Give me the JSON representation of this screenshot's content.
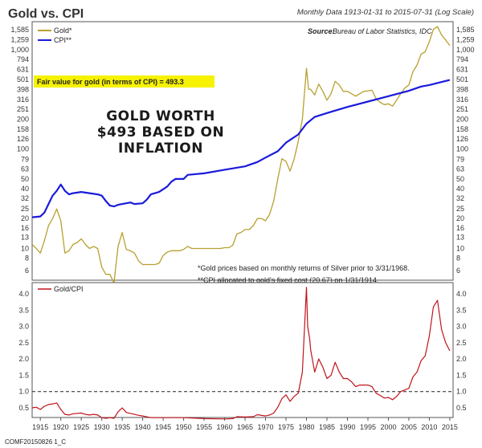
{
  "header": {
    "title": "Gold vs. CPI",
    "subtitle": "Monthly Data 1913-01-31 to 2015-07-31 (Log Scale)"
  },
  "source_label": "Source:",
  "source_text": "Bureau of Labor Statistics, IDC",
  "fair_value_text": "Fair value for gold (in terms of CPI) = 493.3",
  "headline_lines": [
    "GOLD WORTH",
    "$493 BASED ON",
    "INFLATION"
  ],
  "notes": [
    "*Gold prices based on monthly returns of Silver prior to 3/31/1968.",
    "**CPI allocated to gold's fixed cost (20.67) on 1/31/1914."
  ],
  "footer_code": "COMF20150826 1_C",
  "colors": {
    "gold": "#b8a030",
    "cpi": "#1a1adc",
    "ratio": "#c0141c",
    "fair_bg": "#f6f200"
  },
  "chart_data": [
    {
      "type": "line",
      "scale": "log",
      "series": [
        {
          "name": "Gold*",
          "points": [
            [
              1913,
              11
            ],
            [
              1914,
              10
            ],
            [
              1915,
              9
            ],
            [
              1916,
              12
            ],
            [
              1917,
              17
            ],
            [
              1918,
              20
            ],
            [
              1919,
              25
            ],
            [
              1920,
              19
            ],
            [
              1921,
              9
            ],
            [
              1922,
              9.5
            ],
            [
              1923,
              11
            ],
            [
              1924,
              11.5
            ],
            [
              1925,
              12.5
            ],
            [
              1926,
              11
            ],
            [
              1927,
              10
            ],
            [
              1928,
              10.5
            ],
            [
              1929,
              10
            ],
            [
              1930,
              6.5
            ],
            [
              1931,
              5.5
            ],
            [
              1932,
              5.5
            ],
            [
              1933,
              4.5
            ],
            [
              1933.5,
              7
            ],
            [
              1934,
              10.5
            ],
            [
              1935,
              14.5
            ],
            [
              1936,
              9.8
            ],
            [
              1937,
              9.5
            ],
            [
              1938,
              9
            ],
            [
              1939,
              7.5
            ],
            [
              1940,
              6.9
            ],
            [
              1941,
              6.9
            ],
            [
              1942,
              6.9
            ],
            [
              1943,
              6.9
            ],
            [
              1944,
              7.1
            ],
            [
              1945,
              8.5
            ],
            [
              1946,
              9.2
            ],
            [
              1947,
              9.5
            ],
            [
              1948,
              9.5
            ],
            [
              1949,
              9.5
            ],
            [
              1950,
              9.8
            ],
            [
              1951,
              10.5
            ],
            [
              1952,
              10
            ],
            [
              1953,
              10
            ],
            [
              1954,
              10
            ],
            [
              1955,
              10
            ],
            [
              1956,
              10
            ],
            [
              1957,
              10
            ],
            [
              1958,
              10
            ],
            [
              1959,
              10
            ],
            [
              1960,
              10.2
            ],
            [
              1961,
              10.2
            ],
            [
              1962,
              10.8
            ],
            [
              1963,
              14
            ],
            [
              1964,
              14.5
            ],
            [
              1965,
              15.5
            ],
            [
              1966,
              15.5
            ],
            [
              1967,
              17
            ],
            [
              1968,
              20
            ],
            [
              1969,
              20
            ],
            [
              1970,
              19
            ],
            [
              1971,
              22
            ],
            [
              1972,
              30
            ],
            [
              1973,
              50
            ],
            [
              1974,
              80
            ],
            [
              1975,
              75
            ],
            [
              1976,
              60
            ],
            [
              1977,
              80
            ],
            [
              1978,
              120
            ],
            [
              1979,
              200
            ],
            [
              1980,
              650
            ],
            [
              1980.5,
              400
            ],
            [
              1981,
              400
            ],
            [
              1982,
              350
            ],
            [
              1983,
              450
            ],
            [
              1984,
              380
            ],
            [
              1985,
              310
            ],
            [
              1986,
              360
            ],
            [
              1987,
              480
            ],
            [
              1988,
              440
            ],
            [
              1989,
              380
            ],
            [
              1990,
              380
            ],
            [
              1991,
              360
            ],
            [
              1992,
              340
            ],
            [
              1993,
              360
            ],
            [
              1994,
              380
            ],
            [
              1995,
              385
            ],
            [
              1996,
              390
            ],
            [
              1997,
              320
            ],
            [
              1998,
              295
            ],
            [
              1999,
              280
            ],
            [
              2000,
              285
            ],
            [
              2001,
              270
            ],
            [
              2002,
              310
            ],
            [
              2003,
              360
            ],
            [
              2004,
              410
            ],
            [
              2005,
              440
            ],
            [
              2006,
              600
            ],
            [
              2007,
              700
            ],
            [
              2008,
              900
            ],
            [
              2009,
              950
            ],
            [
              2010,
              1200
            ],
            [
              2011,
              1600
            ],
            [
              2012,
              1700
            ],
            [
              2013,
              1400
            ],
            [
              2014,
              1250
            ],
            [
              2015,
              1100
            ]
          ]
        },
        {
          "name": "CPI**",
          "points": [
            [
              1913,
              20.6
            ],
            [
              1915,
              21
            ],
            [
              1916,
              23
            ],
            [
              1917,
              28
            ],
            [
              1918,
              34
            ],
            [
              1919,
              38
            ],
            [
              1920,
              44
            ],
            [
              1921,
              38
            ],
            [
              1922,
              35
            ],
            [
              1923,
              36
            ],
            [
              1925,
              37
            ],
            [
              1929,
              35
            ],
            [
              1930,
              34
            ],
            [
              1931,
              30
            ],
            [
              1932,
              27
            ],
            [
              1933,
              26.5
            ],
            [
              1934,
              27.5
            ],
            [
              1937,
              29
            ],
            [
              1938,
              28
            ],
            [
              1940,
              28.5
            ],
            [
              1941,
              31
            ],
            [
              1942,
              35
            ],
            [
              1944,
              37
            ],
            [
              1946,
              42
            ],
            [
              1947,
              47
            ],
            [
              1948,
              50
            ],
            [
              1950,
              50
            ],
            [
              1951,
              55
            ],
            [
              1955,
              57
            ],
            [
              1960,
              62
            ],
            [
              1965,
              67
            ],
            [
              1968,
              74
            ],
            [
              1970,
              82
            ],
            [
              1973,
              95
            ],
            [
              1975,
              116
            ],
            [
              1978,
              140
            ],
            [
              1980,
              180
            ],
            [
              1982,
              210
            ],
            [
              1985,
              230
            ],
            [
              1990,
              265
            ],
            [
              1995,
              300
            ],
            [
              2000,
              340
            ],
            [
              2005,
              385
            ],
            [
              2008,
              425
            ],
            [
              2010,
              440
            ],
            [
              2015,
              495
            ]
          ]
        }
      ],
      "x_ticks": [
        1915,
        1920,
        1925,
        1930,
        1935,
        1940,
        1945,
        1950,
        1955,
        1960,
        1965,
        1970,
        1975,
        1980,
        1985,
        1990,
        1995,
        2000,
        2005,
        2010,
        2015
      ],
      "y_ticks": [
        "6",
        "8",
        "10",
        "13",
        "16",
        "20",
        "25",
        "32",
        "40",
        "50",
        "63",
        "79",
        "100",
        "126",
        "158",
        "200",
        "251",
        "316",
        "398",
        "501",
        "631",
        "794",
        "1,000",
        "1,259",
        "1,585"
      ],
      "legend_position": "top-left"
    },
    {
      "type": "line",
      "series": [
        {
          "name": "Gold/CPI",
          "points": [
            [
              1913,
              0.5
            ],
            [
              1914,
              0.52
            ],
            [
              1915,
              0.45
            ],
            [
              1916,
              0.55
            ],
            [
              1917,
              0.6
            ],
            [
              1918,
              0.62
            ],
            [
              1919,
              0.65
            ],
            [
              1920,
              0.45
            ],
            [
              1921,
              0.3
            ],
            [
              1922,
              0.28
            ],
            [
              1923,
              0.32
            ],
            [
              1925,
              0.34
            ],
            [
              1926,
              0.3
            ],
            [
              1927,
              0.28
            ],
            [
              1928,
              0.3
            ],
            [
              1929,
              0.28
            ],
            [
              1930,
              0.2
            ],
            [
              1931,
              0.18
            ],
            [
              1932,
              0.2
            ],
            [
              1933,
              0.18
            ],
            [
              1934,
              0.38
            ],
            [
              1935,
              0.5
            ],
            [
              1936,
              0.36
            ],
            [
              1937,
              0.33
            ],
            [
              1938,
              0.3
            ],
            [
              1939,
              0.27
            ],
            [
              1940,
              0.25
            ],
            [
              1942,
              0.2
            ],
            [
              1945,
              0.2
            ],
            [
              1950,
              0.2
            ],
            [
              1955,
              0.17
            ],
            [
              1960,
              0.16
            ],
            [
              1962,
              0.17
            ],
            [
              1963,
              0.23
            ],
            [
              1965,
              0.22
            ],
            [
              1967,
              0.23
            ],
            [
              1968,
              0.29
            ],
            [
              1970,
              0.25
            ],
            [
              1971,
              0.28
            ],
            [
              1972,
              0.34
            ],
            [
              1973,
              0.52
            ],
            [
              1974,
              0.78
            ],
            [
              1975,
              0.9
            ],
            [
              1976,
              0.7
            ],
            [
              1977,
              0.85
            ],
            [
              1978,
              0.95
            ],
            [
              1979,
              1.6
            ],
            [
              1980,
              4.2
            ],
            [
              1980.3,
              3.0
            ],
            [
              1980.8,
              2.6
            ],
            [
              1981,
              2.3
            ],
            [
              1982,
              1.6
            ],
            [
              1983,
              2.0
            ],
            [
              1984,
              1.75
            ],
            [
              1985,
              1.4
            ],
            [
              1986,
              1.5
            ],
            [
              1987,
              1.9
            ],
            [
              1988,
              1.6
            ],
            [
              1989,
              1.4
            ],
            [
              1990,
              1.4
            ],
            [
              1991,
              1.3
            ],
            [
              1992,
              1.15
            ],
            [
              1993,
              1.2
            ],
            [
              1994,
              1.2
            ],
            [
              1995,
              1.2
            ],
            [
              1996,
              1.15
            ],
            [
              1997,
              0.95
            ],
            [
              1998,
              0.88
            ],
            [
              1999,
              0.8
            ],
            [
              2000,
              0.82
            ],
            [
              2001,
              0.75
            ],
            [
              2002,
              0.85
            ],
            [
              2003,
              1.0
            ],
            [
              2004,
              1.05
            ],
            [
              2005,
              1.1
            ],
            [
              2006,
              1.45
            ],
            [
              2007,
              1.6
            ],
            [
              2008,
              1.95
            ],
            [
              2009,
              2.1
            ],
            [
              2010,
              2.7
            ],
            [
              2011,
              3.6
            ],
            [
              2012,
              3.8
            ],
            [
              2013,
              2.9
            ],
            [
              2014,
              2.5
            ],
            [
              2015,
              2.25
            ]
          ]
        }
      ],
      "reference_line": 1.0,
      "ylim": [
        0.2,
        4.2
      ],
      "y_ticks": [
        "0.5",
        "1.0",
        "1.5",
        "2.0",
        "2.5",
        "3.0",
        "3.5",
        "4.0"
      ],
      "x_ticks": [
        1915,
        1920,
        1925,
        1930,
        1935,
        1940,
        1945,
        1950,
        1955,
        1960,
        1965,
        1970,
        1975,
        1980,
        1985,
        1990,
        1995,
        2000,
        2005,
        2010,
        2015
      ],
      "legend_position": "top-left"
    }
  ]
}
